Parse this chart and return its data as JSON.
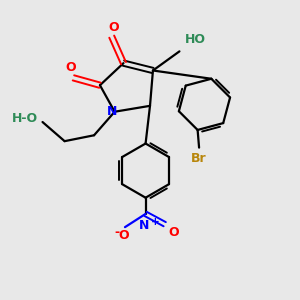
{
  "background_color": "#e8e8e8",
  "bond_color": "#000000",
  "N_color": "#0000ff",
  "O_color": "#ff0000",
  "OH_color": "#2e8b57",
  "Br_color": "#b8860b",
  "figsize": [
    3.0,
    3.0
  ],
  "dpi": 100,
  "xlim": [
    0,
    10
  ],
  "ylim": [
    0,
    10
  ]
}
